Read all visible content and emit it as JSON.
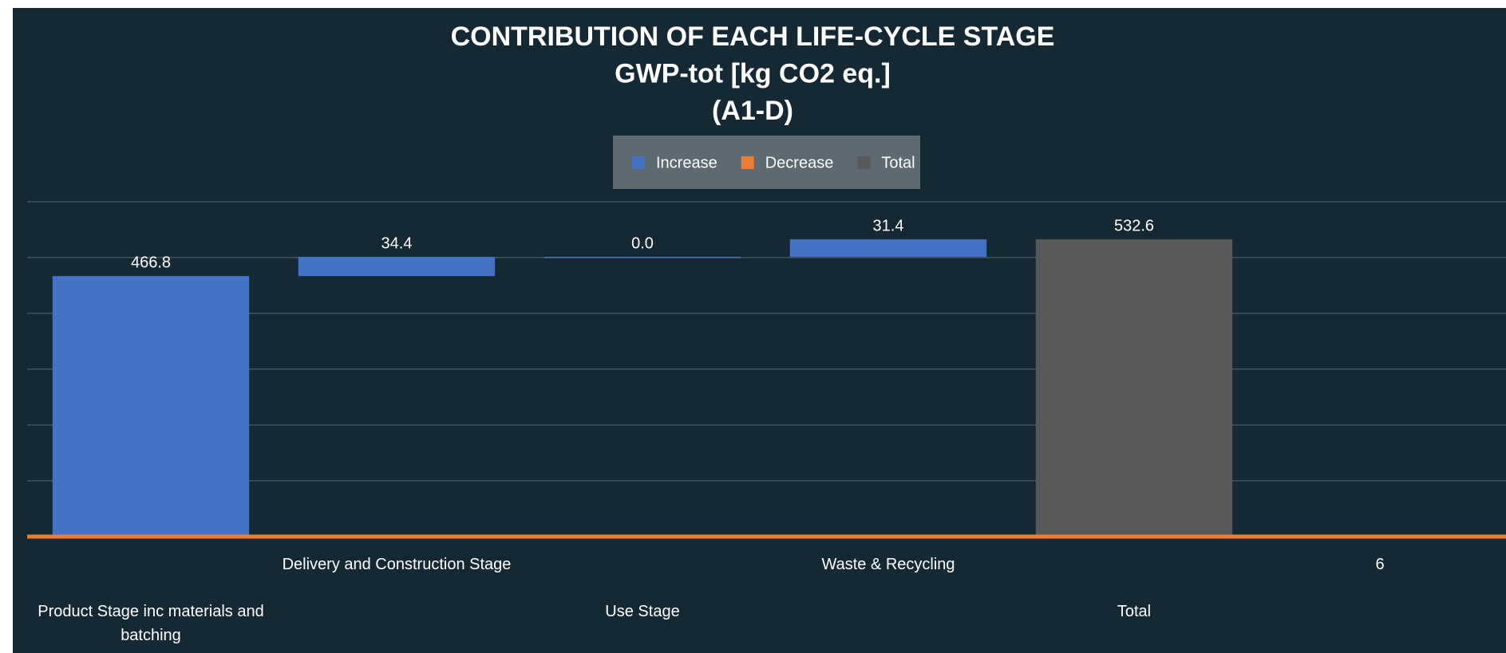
{
  "chart_data": {
    "type": "waterfall",
    "title": [
      "CONTRIBUTION OF EACH LIFE-CYCLE STAGE",
      "GWP-tot [kg CO2 eq.]",
      "(A1-D)"
    ],
    "categories": [
      "Product Stage inc materials and batching",
      "Delivery and Construction Stage",
      "Use Stage",
      "Waste & Recycling",
      "Total",
      "6"
    ],
    "values": [
      466.8,
      34.4,
      0.0,
      31.4,
      532.6,
      null
    ],
    "value_labels": [
      "466.8",
      "34.4",
      "0.0",
      "31.4",
      "532.6",
      null
    ],
    "kinds": [
      "increase",
      "increase",
      "increase",
      "increase",
      "total",
      null
    ],
    "legend": [
      {
        "name": "Increase",
        "color": "#4472c4"
      },
      {
        "name": "Decrease",
        "color": "#ed7d31"
      },
      {
        "name": "Total",
        "color": "#595959"
      }
    ],
    "ylim": [
      0,
      600
    ],
    "yticks": [
      0,
      100,
      200,
      300,
      400,
      500,
      600
    ],
    "grid": true
  }
}
